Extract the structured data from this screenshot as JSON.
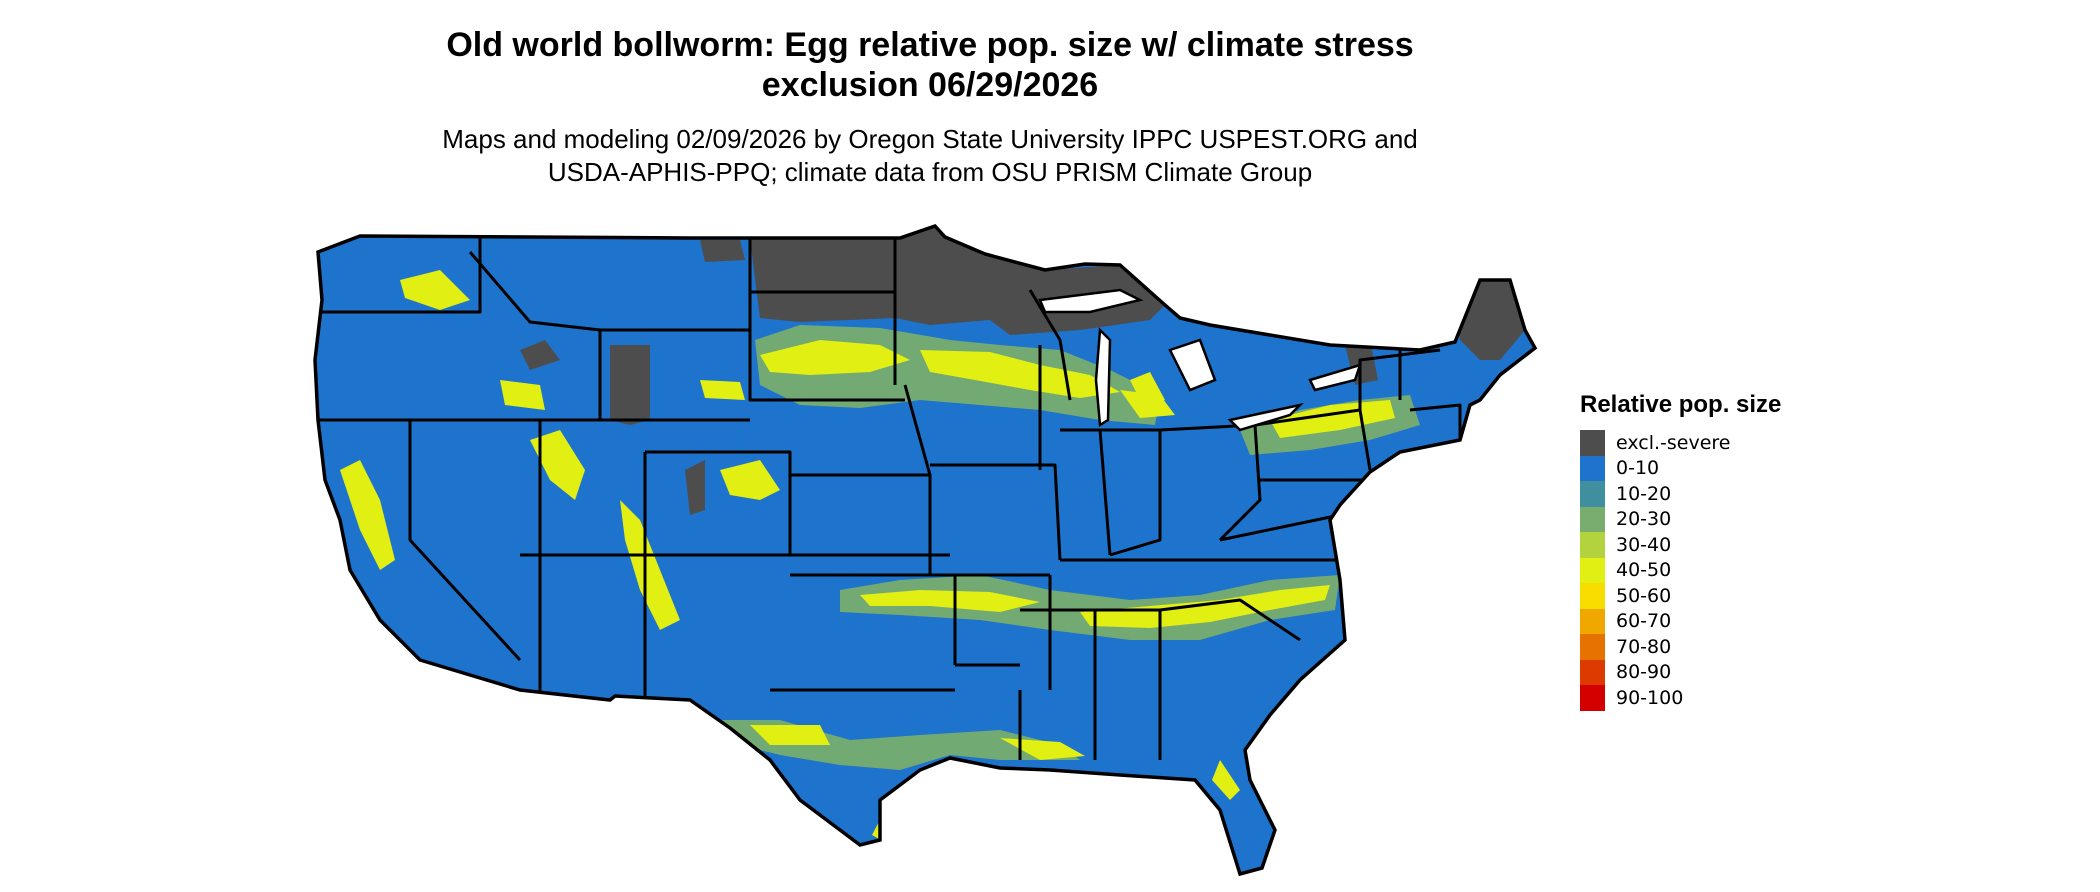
{
  "map": {
    "title_line1": "Old world bollworm: Egg relative pop. size w/ climate stress",
    "title_line2": "exclusion 06/29/2026",
    "subtitle_line1": "Maps and modeling 02/09/2026 by Oregon State University IPPC USPEST.ORG and",
    "subtitle_line2": "USDA-APHIS-PPQ; climate data from OSU PRISM Climate Group",
    "region": "Contiguous United States",
    "colors": {
      "excluded": "#4d4d4d",
      "low": "#1e73cc",
      "high": "#e6ef12",
      "mid": "#6aa36a",
      "border": "#000000"
    }
  },
  "legend": {
    "title": "Relative pop. size",
    "items": [
      {
        "label": "excl.-severe",
        "color": "#4d4d4d"
      },
      {
        "label": "0-10",
        "color": "#1e73cc"
      },
      {
        "label": "10-20",
        "color": "#3f8f9f"
      },
      {
        "label": "20-30",
        "color": "#78ad6e"
      },
      {
        "label": "30-40",
        "color": "#b2d33e"
      },
      {
        "label": "40-50",
        "color": "#e2ef12"
      },
      {
        "label": "50-60",
        "color": "#f8de00"
      },
      {
        "label": "60-70",
        "color": "#f0a800"
      },
      {
        "label": "70-80",
        "color": "#e67300"
      },
      {
        "label": "80-90",
        "color": "#dd3a00"
      },
      {
        "label": "90-100",
        "color": "#d40000"
      }
    ]
  }
}
